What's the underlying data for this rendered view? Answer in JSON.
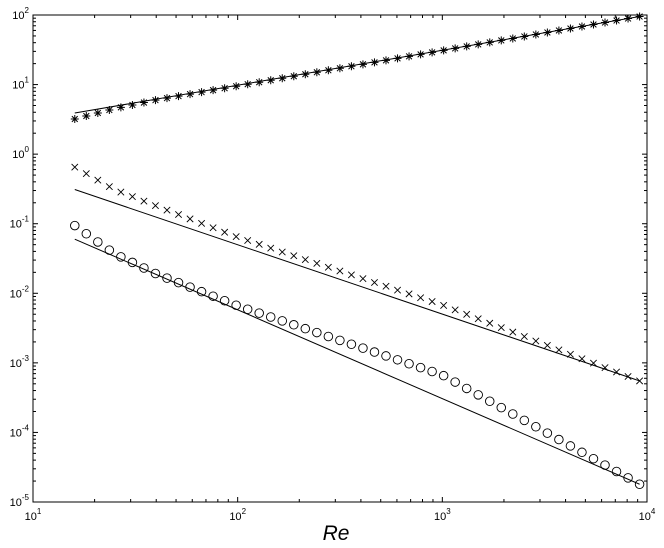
{
  "chart_data": {
    "type": "scatter",
    "title": "",
    "xlabel": "Re",
    "ylabel": "",
    "x_scale": "log",
    "y_scale": "log",
    "xlim": [
      10,
      10000
    ],
    "ylim": [
      1e-05,
      100
    ],
    "grid": false,
    "x_ticks": [
      {
        "value": 10,
        "base": "10",
        "exp": "1"
      },
      {
        "value": 100,
        "base": "10",
        "exp": "2"
      },
      {
        "value": 1000,
        "base": "10",
        "exp": "3"
      },
      {
        "value": 10000,
        "base": "10",
        "exp": "4"
      }
    ],
    "y_ticks": [
      {
        "value": 1e-05,
        "base": "10",
        "exp": "-5"
      },
      {
        "value": 0.0001,
        "base": "10",
        "exp": "-4"
      },
      {
        "value": 0.001,
        "base": "10",
        "exp": "-3"
      },
      {
        "value": 0.01,
        "base": "10",
        "exp": "-2"
      },
      {
        "value": 0.1,
        "base": "10",
        "exp": "-1"
      },
      {
        "value": 1,
        "base": "10",
        "exp": "0"
      },
      {
        "value": 10,
        "base": "10",
        "exp": "1"
      },
      {
        "value": 100,
        "base": "10",
        "exp": "2"
      }
    ],
    "x_range": [
      16,
      9200
    ],
    "n_points": 50,
    "series": [
      {
        "marker": "asterisk",
        "marker_fit": [
          [
            16,
            3.2
          ],
          [
            25,
            4.5
          ],
          [
            40,
            6.0
          ],
          [
            9200,
            95
          ]
        ],
        "fit_line": [
          [
            16,
            3.9
          ],
          [
            9200,
            95
          ]
        ]
      },
      {
        "marker": "x",
        "marker_fit": [
          [
            16,
            0.65
          ],
          [
            25,
            0.31
          ],
          [
            40,
            0.18
          ],
          [
            100,
            0.064
          ],
          [
            1000,
            0.0068
          ],
          [
            9200,
            0.00055
          ]
        ],
        "fit_line": [
          [
            16,
            0.31
          ],
          [
            9200,
            0.00055
          ]
        ]
      },
      {
        "marker": "circle",
        "marker_fit": [
          [
            16,
            0.094
          ],
          [
            25,
            0.037
          ],
          [
            40,
            0.019
          ],
          [
            100,
            0.0066
          ],
          [
            1000,
            0.00067
          ],
          [
            9200,
            1.8e-05
          ]
        ],
        "fit_line": [
          [
            16,
            0.06
          ],
          [
            9200,
            1.8e-05
          ]
        ]
      }
    ]
  }
}
